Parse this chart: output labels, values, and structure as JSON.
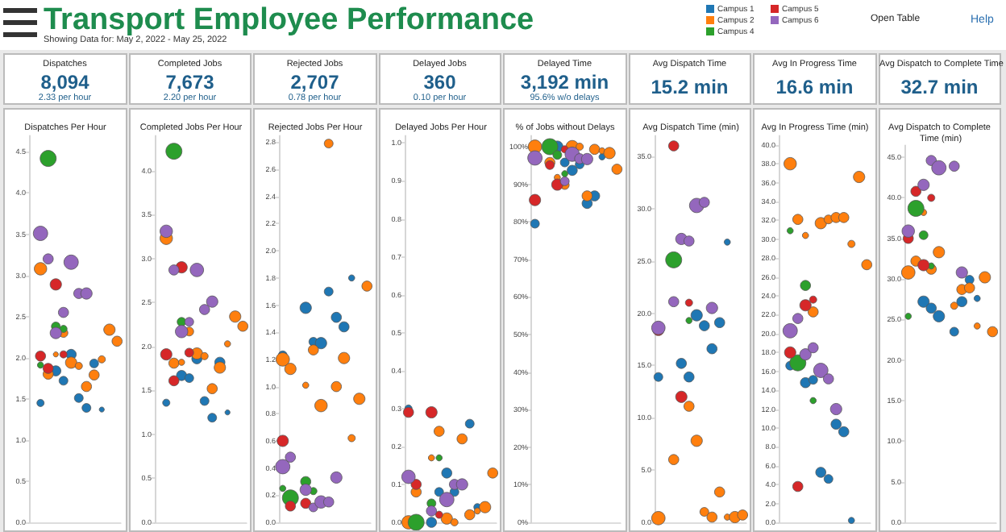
{
  "chart_data": [
    {
      "type": "other",
      "title": "Transport Employee Performance",
      "subtitle": "Showing Data for: May 2, 2022 - May 25, 2022",
      "annotations": [
        "Open Table",
        "Help"
      ]
    },
    {
      "type": "bubble",
      "title": "Dispatches Per Hour",
      "annotations": [
        "Dispatches",
        "8,094",
        "2.33 per hour"
      ],
      "legend": "top",
      "marker": "circle",
      "grid": false,
      "tick_labels": "y",
      "categories": [
        null,
        null,
        null,
        null,
        null,
        null,
        null,
        null,
        null,
        null,
        null,
        null
      ],
      "ylim": [
        0,
        4.7
      ],
      "yticks": [
        {
          "value": 0,
          "label": "0.0"
        },
        {
          "value": 0.5,
          "label": "0.5"
        },
        {
          "value": 1,
          "label": "1.0"
        },
        {
          "value": 1.5,
          "label": "1.5"
        },
        {
          "value": 2,
          "label": "2.0"
        },
        {
          "value": 2.5,
          "label": "2.5"
        },
        {
          "value": 3,
          "label": "3.0"
        },
        {
          "value": 3.5,
          "label": "3.5"
        },
        {
          "value": 4,
          "label": "4.0"
        },
        {
          "value": 4.5,
          "label": "4.5"
        }
      ],
      "series": [
        {
          "name": "Campus 1",
          "color": "#1f77b4",
          "values": [
            null,
            1.45,
            null,
            1.84,
            1.72,
            2.04,
            1.51,
            1.39,
            1.93,
            1.37,
            null,
            null
          ],
          "sizes": [
            null,
            0.2,
            null,
            0.4,
            0.3,
            0.4,
            0.3,
            0.3,
            0.3,
            0.1,
            null,
            null
          ]
        },
        {
          "name": "Campus 2",
          "color": "#ff7f0e",
          "values": [
            null,
            3.08,
            1.8,
            2.04,
            2.3,
            1.94,
            1.9,
            1.65,
            1.79,
            1.98,
            2.34,
            2.2
          ],
          "sizes": [
            null,
            0.6,
            0.4,
            0.1,
            0.3,
            0.5,
            0.2,
            0.4,
            0.4,
            0.2,
            0.5,
            0.4
          ]
        },
        {
          "name": "Campus 4",
          "color": "#2ca02c",
          "values": [
            null,
            1.91,
            4.42,
            2.38,
            2.35,
            null,
            null,
            null,
            null,
            null,
            null,
            null
          ],
          "sizes": [
            null,
            0.15,
            1,
            0.3,
            0.2,
            null,
            null,
            null,
            null,
            null,
            null,
            null
          ]
        },
        {
          "name": "Campus 5",
          "color": "#d62728",
          "values": [
            null,
            2.02,
            1.87,
            2.89,
            2.04,
            null,
            null,
            null,
            null,
            null,
            null,
            null
          ],
          "sizes": [
            null,
            0.4,
            0.4,
            0.5,
            0.2,
            null,
            null,
            null,
            null,
            null,
            null,
            null
          ]
        },
        {
          "name": "Campus 6",
          "color": "#9467bd",
          "values": [
            null,
            3.51,
            3.2,
            2.3,
            2.55,
            3.16,
            2.78,
            2.78,
            null,
            null,
            null,
            null
          ],
          "sizes": [
            null,
            0.8,
            0.4,
            0.5,
            0.4,
            0.8,
            0.4,
            0.5,
            null,
            null,
            null,
            null
          ]
        }
      ]
    },
    {
      "type": "bubble",
      "title": "Completed Jobs Per Hour",
      "annotations": [
        "Completed Jobs",
        "7,673",
        "2.20 per hour"
      ],
      "marker": "circle",
      "grid": false,
      "tick_labels": "y",
      "categories": [
        null,
        null,
        null,
        null,
        null,
        null,
        null,
        null,
        null,
        null,
        null,
        null
      ],
      "ylim": [
        0,
        4.4
      ],
      "yticks": [
        {
          "value": 0,
          "label": "0.0"
        },
        {
          "value": 0.5,
          "label": "0.5"
        },
        {
          "value": 1,
          "label": "1.0"
        },
        {
          "value": 1.5,
          "label": "1.5"
        },
        {
          "value": 2,
          "label": "2.0"
        },
        {
          "value": 2.5,
          "label": "2.5"
        },
        {
          "value": 3,
          "label": "3.0"
        },
        {
          "value": 3.5,
          "label": "3.5"
        },
        {
          "value": 4,
          "label": "4.0"
        }
      ],
      "series": [
        {
          "color": "#1f77b4",
          "values": [
            null,
            1.36,
            null,
            1.67,
            1.64,
            1.86,
            1.38,
            1.19,
            1.82,
            1.25,
            null,
            null
          ],
          "sizes": [
            null,
            0.2,
            null,
            0.4,
            0.3,
            0.4,
            0.3,
            0.3,
            0.4,
            0.1,
            null,
            null
          ]
        },
        {
          "color": "#ff7f0e",
          "values": [
            null,
            3.23,
            1.81,
            1.82,
            2.17,
            1.92,
            1.89,
            1.52,
            1.76,
            2.03,
            2.34,
            2.23
          ],
          "sizes": [
            null,
            0.6,
            0.4,
            0.15,
            0.3,
            0.5,
            0.2,
            0.4,
            0.5,
            0.15,
            0.5,
            0.4
          ]
        },
        {
          "color": "#2ca02c",
          "values": [
            null,
            null,
            4.22,
            2.28,
            null,
            null,
            null,
            null,
            null,
            null,
            null,
            null
          ],
          "sizes": [
            null,
            null,
            1,
            0.3,
            null,
            null,
            null,
            null,
            null,
            null,
            null,
            null
          ]
        },
        {
          "color": "#d62728",
          "values": [
            null,
            1.91,
            1.61,
            2.9,
            1.93,
            null,
            null,
            null,
            null,
            null,
            null,
            null
          ],
          "sizes": [
            null,
            0.5,
            0.4,
            0.5,
            0.3,
            null,
            null,
            null,
            null,
            null,
            null,
            null
          ]
        },
        {
          "color": "#9467bd",
          "values": [
            null,
            3.31,
            2.87,
            2.17,
            2.28,
            2.87,
            2.42,
            2.51,
            null,
            null,
            null,
            null
          ],
          "sizes": [
            null,
            0.6,
            0.4,
            0.6,
            0.3,
            0.7,
            0.4,
            0.5,
            null,
            null,
            null,
            null
          ]
        }
      ]
    },
    {
      "type": "bubble",
      "title": "Rejected Jobs Per Hour",
      "annotations": [
        "Rejected Jobs",
        "2,707",
        "0.78 per hour"
      ],
      "marker": "circle",
      "grid": false,
      "tick_labels": "y",
      "categories": [
        null,
        null,
        null,
        null,
        null,
        null,
        null,
        null,
        null,
        null,
        null,
        null
      ],
      "ylim": [
        0,
        2.85
      ],
      "yticks": [
        {
          "value": 0,
          "label": "0.0"
        },
        {
          "value": 0.2,
          "label": "0.2"
        },
        {
          "value": 0.4,
          "label": "0.4"
        },
        {
          "value": 0.6,
          "label": "0.6"
        },
        {
          "value": 0.8,
          "label": "0.8"
        },
        {
          "value": 1,
          "label": "1.0"
        },
        {
          "value": 1.2,
          "label": "1.2"
        },
        {
          "value": 1.4,
          "label": "1.4"
        },
        {
          "value": 1.6,
          "label": "1.6"
        },
        {
          "value": 1.8,
          "label": "1.8"
        },
        {
          "value": 2,
          "label": "2.0"
        },
        {
          "value": 2.2,
          "label": "2.2"
        },
        {
          "value": 2.4,
          "label": "2.4"
        },
        {
          "value": 2.6,
          "label": "2.6"
        },
        {
          "value": 2.8,
          "label": "2.8"
        }
      ],
      "series": [
        {
          "color": "#1f77b4",
          "values": [
            1.23,
            null,
            null,
            1.58,
            1.33,
            1.32,
            1.7,
            1.51,
            1.44,
            1.8,
            null,
            null
          ],
          "sizes": [
            0.3,
            null,
            null,
            0.5,
            0.3,
            0.5,
            0.3,
            0.4,
            0.4,
            0.15,
            null,
            null
          ]
        },
        {
          "color": "#ff7f0e",
          "values": [
            1.2,
            1.13,
            null,
            1.01,
            1.27,
            0.86,
            2.79,
            1.0,
            1.21,
            0.62,
            0.91,
            1.74
          ],
          "sizes": [
            0.7,
            0.5,
            null,
            0.15,
            0.4,
            0.6,
            0.3,
            0.4,
            0.5,
            0.2,
            0.5,
            0.4
          ]
        },
        {
          "color": "#2ca02c",
          "values": [
            0.25,
            0.18,
            null,
            0.3,
            0.23,
            null,
            null,
            null,
            null,
            null,
            null,
            null
          ],
          "sizes": [
            0.15,
            1,
            null,
            0.4,
            0.2,
            null,
            null,
            null,
            null,
            null,
            null,
            null
          ]
        },
        {
          "color": "#d62728",
          "values": [
            0.6,
            0.12,
            null,
            0.14,
            null,
            null,
            null,
            null,
            null,
            null,
            null,
            null
          ],
          "sizes": [
            0.5,
            0.4,
            null,
            0.4,
            null,
            null,
            null,
            null,
            null,
            null,
            null,
            null
          ]
        },
        {
          "color": "#9467bd",
          "values": [
            0.41,
            0.48,
            null,
            0.24,
            0.11,
            0.15,
            0.15,
            0.33,
            null,
            null,
            null,
            null
          ],
          "sizes": [
            0.8,
            0.4,
            null,
            0.5,
            0.3,
            0.6,
            0.4,
            0.5,
            null,
            null,
            null,
            null
          ]
        }
      ]
    },
    {
      "type": "bubble",
      "title": "Delayed Jobs Per Hour",
      "annotations": [
        "Delayed Jobs",
        "360",
        "0.10 per hour"
      ],
      "marker": "circle",
      "grid": false,
      "tick_labels": "y",
      "categories": [
        null,
        null,
        null,
        null,
        null,
        null,
        null,
        null,
        null,
        null,
        null,
        null
      ],
      "ylim": [
        0,
        1.02
      ],
      "yticks": [
        {
          "value": 0,
          "label": "0.0"
        },
        {
          "value": 0.1,
          "label": "0.1"
        },
        {
          "value": 0.2,
          "label": "0.2"
        },
        {
          "value": 0.3,
          "label": "0.3"
        },
        {
          "value": 0.4,
          "label": "0.4"
        },
        {
          "value": 0.5,
          "label": "0.5"
        },
        {
          "value": 0.6,
          "label": "0.6"
        },
        {
          "value": 0.7,
          "label": "0.7"
        },
        {
          "value": 0.8,
          "label": "0.8"
        },
        {
          "value": 0.9,
          "label": "0.9"
        },
        {
          "value": 1,
          "label": "1.0"
        }
      ],
      "series": [
        {
          "color": "#1f77b4",
          "values": [
            0.3,
            null,
            null,
            0.0,
            0.08,
            0.13,
            0.08,
            null,
            0.26,
            0.04,
            null,
            null
          ],
          "sizes": [
            0.2,
            null,
            null,
            0.4,
            0.3,
            0.4,
            0.3,
            null,
            0.3,
            0.2,
            null,
            null
          ]
        },
        {
          "color": "#ff7f0e",
          "values": [
            0.0,
            0.08,
            null,
            0.17,
            0.24,
            0.01,
            0.0,
            0.22,
            0.02,
            0.03,
            0.04,
            0.13
          ],
          "sizes": [
            0.7,
            0.4,
            null,
            0.15,
            0.4,
            0.5,
            0.2,
            0.4,
            0.4,
            0.15,
            0.5,
            0.4
          ]
        },
        {
          "color": "#2ca02c",
          "values": [
            null,
            0.0,
            null,
            0.05,
            0.17,
            null,
            null,
            null,
            null,
            null,
            null,
            null
          ],
          "sizes": [
            null,
            1,
            null,
            0.3,
            0.15,
            null,
            null,
            null,
            null,
            null,
            null,
            null
          ]
        },
        {
          "color": "#d62728",
          "values": [
            0.29,
            0.1,
            null,
            0.29,
            0.02,
            null,
            null,
            null,
            null,
            null,
            null,
            null
          ],
          "sizes": [
            0.4,
            0.4,
            null,
            0.5,
            0.2,
            null,
            null,
            null,
            null,
            null,
            null,
            null
          ]
        },
        {
          "color": "#9467bd",
          "values": [
            0.12,
            null,
            null,
            0.03,
            null,
            0.06,
            0.1,
            0.1,
            null,
            null,
            null,
            null
          ],
          "sizes": [
            0.7,
            null,
            null,
            0.4,
            null,
            0.8,
            0.4,
            0.5,
            null,
            null,
            null,
            null
          ]
        }
      ]
    },
    {
      "type": "bubble",
      "title": "% of Jobs without Delays",
      "annotations": [
        "Delayed Time",
        "3,192 min",
        "95.6% w/o delays"
      ],
      "marker": "circle",
      "grid": false,
      "tick_labels": "y",
      "categories": [
        null,
        null,
        null,
        null,
        null,
        null,
        null,
        null,
        null,
        null,
        null,
        null
      ],
      "ylim": [
        0,
        103
      ],
      "yticks": [
        {
          "value": 0,
          "label": "0%"
        },
        {
          "value": 10,
          "label": "10%"
        },
        {
          "value": 20,
          "label": "20%"
        },
        {
          "value": 30,
          "label": "30%"
        },
        {
          "value": 40,
          "label": "40%"
        },
        {
          "value": 50,
          "label": "50%"
        },
        {
          "value": 60,
          "label": "60%"
        },
        {
          "value": 70,
          "label": "70%"
        },
        {
          "value": 80,
          "label": "80%"
        },
        {
          "value": 90,
          "label": "90%"
        },
        {
          "value": 100,
          "label": "100%"
        }
      ],
      "series": [
        {
          "color": "#1f77b4",
          "values": [
            79.5,
            null,
            null,
            100,
            95.8,
            93.7,
            95.3,
            84.9,
            86.9,
            97.3,
            null,
            null
          ],
          "sizes": [
            0.3,
            null,
            null,
            0.5,
            0.3,
            0.4,
            0.3,
            0.4,
            0.4,
            0.15,
            null,
            null
          ]
        },
        {
          "color": "#ff7f0e",
          "values": [
            100,
            null,
            95.8,
            91.8,
            89.8,
            100,
            100,
            86.9,
            99.3,
            98.9,
            98.3,
            94.0
          ],
          "sizes": [
            0.7,
            null,
            0.4,
            0.15,
            0.3,
            0.6,
            0.2,
            0.4,
            0.4,
            0.15,
            0.5,
            0.4
          ]
        },
        {
          "color": "#2ca02c",
          "values": [
            null,
            null,
            100,
            97.8,
            92.8,
            null,
            null,
            null,
            null,
            null,
            null,
            null
          ],
          "sizes": [
            null,
            null,
            1,
            0.3,
            0.15,
            null,
            null,
            null,
            null,
            null,
            null,
            null
          ]
        },
        {
          "color": "#d62728",
          "values": [
            85.8,
            null,
            95.1,
            89.9,
            99.3,
            null,
            null,
            null,
            null,
            null,
            null,
            null
          ],
          "sizes": [
            0.5,
            null,
            0.3,
            0.5,
            0.2,
            null,
            null,
            null,
            null,
            null,
            null,
            null
          ]
        },
        {
          "color": "#9467bd",
          "values": [
            97.0,
            null,
            null,
            null,
            90.8,
            98.0,
            96.8,
            96.7,
            null,
            null,
            null,
            null
          ],
          "sizes": [
            0.8,
            null,
            null,
            null,
            0.3,
            0.8,
            0.4,
            0.5,
            null,
            null,
            null,
            null
          ]
        }
      ]
    },
    {
      "type": "bubble",
      "title": "Avg Dispatch Time (min)",
      "annotations": [
        "Avg Dispatch Time",
        "15.2 min"
      ],
      "marker": "circle",
      "grid": false,
      "tick_labels": "y",
      "categories": [
        null,
        null,
        null,
        null,
        null,
        null,
        null,
        null,
        null,
        null,
        null,
        null
      ],
      "ylim": [
        0,
        37
      ],
      "yticks": [
        {
          "value": 0,
          "label": "0.0"
        },
        {
          "value": 5,
          "label": "5.0"
        },
        {
          "value": 10,
          "label": "10.0"
        },
        {
          "value": 15,
          "label": "15.0"
        },
        {
          "value": 20,
          "label": "20.0"
        },
        {
          "value": 25,
          "label": "25.0"
        },
        {
          "value": 30,
          "label": "30.0"
        },
        {
          "value": 35,
          "label": "35.0"
        }
      ],
      "series": [
        {
          "color": "#1f77b4",
          "values": [
            13.9,
            null,
            null,
            15.2,
            13.9,
            19.8,
            18.8,
            16.6,
            19.1,
            26.8,
            null,
            null
          ],
          "sizes": [
            0.3,
            null,
            null,
            0.4,
            0.4,
            0.5,
            0.4,
            0.4,
            0.4,
            0.15,
            null,
            null
          ]
        },
        {
          "color": "#ff7f0e",
          "values": [
            0.4,
            null,
            6.0,
            null,
            11.1,
            7.8,
            1.0,
            0.5,
            2.9,
            0.5,
            0.5,
            0.7
          ],
          "sizes": [
            0.7,
            null,
            0.4,
            null,
            0.4,
            0.5,
            0.3,
            0.4,
            0.4,
            0.15,
            0.5,
            0.4
          ]
        },
        {
          "color": "#2ca02c",
          "values": [
            null,
            null,
            25.1,
            null,
            19.3,
            null,
            null,
            null,
            null,
            null,
            null,
            null
          ],
          "sizes": [
            null,
            null,
            1,
            null,
            0.15,
            null,
            null,
            null,
            null,
            null,
            null,
            null
          ]
        },
        {
          "color": "#d62728",
          "values": [
            18.4,
            null,
            36.0,
            12.0,
            21.0,
            null,
            null,
            null,
            null,
            null,
            null,
            null
          ],
          "sizes": [
            0.5,
            null,
            0.4,
            0.5,
            0.2,
            null,
            null,
            null,
            null,
            null,
            null,
            null
          ]
        },
        {
          "color": "#9467bd",
          "values": [
            18.6,
            null,
            21.1,
            27.1,
            26.9,
            30.3,
            30.6,
            20.5,
            null,
            null,
            null,
            null
          ],
          "sizes": [
            0.7,
            null,
            0.4,
            0.5,
            0.4,
            0.8,
            0.4,
            0.5,
            null,
            null,
            null,
            null
          ]
        }
      ]
    },
    {
      "type": "bubble",
      "title": "Avg In Progress Time (min)",
      "annotations": [
        "Avg In Progress Time",
        "16.6 min"
      ],
      "marker": "circle",
      "grid": false,
      "tick_labels": "y",
      "categories": [
        null,
        null,
        null,
        null,
        null,
        null,
        null,
        null,
        null,
        null,
        null,
        null
      ],
      "ylim": [
        0,
        41
      ],
      "yticks": [
        {
          "value": 0,
          "label": "0.0"
        },
        {
          "value": 2,
          "label": "2.0"
        },
        {
          "value": 4,
          "label": "4.0"
        },
        {
          "value": 6,
          "label": "6.0"
        },
        {
          "value": 8,
          "label": "8.0"
        },
        {
          "value": 10,
          "label": "10.0"
        },
        {
          "value": 12,
          "label": "12.0"
        },
        {
          "value": 14,
          "label": "14.0"
        },
        {
          "value": 16,
          "label": "16.0"
        },
        {
          "value": 18,
          "label": "18.0"
        },
        {
          "value": 20,
          "label": "20.0"
        },
        {
          "value": 22,
          "label": "22.0"
        },
        {
          "value": 24,
          "label": "24.0"
        },
        {
          "value": 26,
          "label": "26.0"
        },
        {
          "value": 28,
          "label": "28.0"
        },
        {
          "value": 30,
          "label": "30.0"
        },
        {
          "value": 32,
          "label": "32.0"
        },
        {
          "value": 34,
          "label": "34.0"
        },
        {
          "value": 36,
          "label": "36.0"
        },
        {
          "value": 38,
          "label": "38.0"
        },
        {
          "value": 40,
          "label": "40.0"
        }
      ],
      "series": [
        {
          "color": "#1f77b4",
          "values": [
            null,
            16.6,
            null,
            14.8,
            15.1,
            5.3,
            4.6,
            10.4,
            9.6,
            0.2,
            null,
            null
          ],
          "sizes": [
            null,
            0.3,
            null,
            0.4,
            0.3,
            0.4,
            0.3,
            0.4,
            0.4,
            0.15,
            null,
            null
          ]
        },
        {
          "color": "#ff7f0e",
          "values": [
            null,
            38.0,
            32.1,
            30.4,
            22.3,
            31.7,
            32.1,
            32.3,
            32.3,
            29.5,
            36.6,
            27.3
          ],
          "sizes": [
            null,
            0.6,
            0.4,
            0.15,
            0.4,
            0.5,
            0.3,
            0.4,
            0.4,
            0.2,
            0.5,
            0.4
          ]
        },
        {
          "color": "#2ca02c",
          "values": [
            null,
            30.9,
            16.9,
            25.1,
            12.9,
            null,
            null,
            null,
            null,
            null,
            null,
            null
          ],
          "sizes": [
            null,
            0.15,
            1,
            0.4,
            0.15,
            null,
            null,
            null,
            null,
            null,
            null,
            null
          ]
        },
        {
          "color": "#d62728",
          "values": [
            null,
            18.0,
            3.8,
            23.0,
            23.6,
            null,
            null,
            null,
            null,
            null,
            null,
            null
          ],
          "sizes": [
            null,
            0.5,
            0.4,
            0.5,
            0.2,
            null,
            null,
            null,
            null,
            null,
            null,
            null
          ]
        },
        {
          "color": "#9467bd",
          "values": [
            null,
            20.3,
            21.6,
            17.8,
            18.5,
            16.1,
            15.2,
            12.0,
            null,
            null,
            null,
            null
          ],
          "sizes": [
            null,
            0.8,
            0.4,
            0.5,
            0.4,
            0.8,
            0.4,
            0.5,
            null,
            null,
            null,
            null
          ]
        }
      ]
    },
    {
      "type": "bubble",
      "title": "Avg Dispatch to Complete Time (min)",
      "annotations": [
        "Avg Dispatch to Complete Time",
        "32.7 min"
      ],
      "marker": "circle",
      "grid": false,
      "tick_labels": "y",
      "categories": [
        null,
        null,
        null,
        null,
        null,
        null,
        null,
        null,
        null,
        null,
        null,
        null
      ],
      "ylim": [
        0,
        46.5
      ],
      "yticks": [
        {
          "value": 0,
          "label": "0.0"
        },
        {
          "value": 5,
          "label": "5.0"
        },
        {
          "value": 10,
          "label": "10.0"
        },
        {
          "value": 15,
          "label": "15.0"
        },
        {
          "value": 20,
          "label": "20.0"
        },
        {
          "value": 25,
          "label": "25.0"
        },
        {
          "value": 30,
          "label": "30.0"
        },
        {
          "value": 35,
          "label": "35.0"
        },
        {
          "value": 40,
          "label": "40.0"
        },
        {
          "value": 45,
          "label": "45.0"
        }
      ],
      "series": [
        {
          "color": "#1f77b4",
          "values": [
            null,
            null,
            27.2,
            26.4,
            25.4,
            null,
            23.5,
            27.2,
            29.9,
            27.6,
            null,
            null
          ],
          "sizes": [
            null,
            null,
            0.5,
            0.4,
            0.5,
            null,
            0.3,
            0.4,
            0.3,
            0.15,
            null,
            null
          ]
        },
        {
          "color": "#ff7f0e",
          "values": [
            30.8,
            32.2,
            38.2,
            31.2,
            33.3,
            null,
            26.7,
            28.7,
            28.9,
            24.2,
            30.2,
            23.5
          ],
          "sizes": [
            0.7,
            0.4,
            0.15,
            0.4,
            0.5,
            null,
            0.2,
            0.4,
            0.4,
            0.15,
            0.5,
            0.4
          ]
        },
        {
          "color": "#2ca02c",
          "values": [
            25.4,
            38.7,
            35.4,
            31.6,
            null,
            null,
            null,
            null,
            null,
            null,
            null,
            null
          ],
          "sizes": [
            0.15,
            1,
            0.3,
            0.15,
            null,
            null,
            null,
            null,
            null,
            null,
            null,
            null
          ]
        },
        {
          "color": "#d62728",
          "values": [
            35.0,
            40.8,
            31.7,
            40.0,
            null,
            null,
            null,
            null,
            null,
            null,
            null,
            null
          ],
          "sizes": [
            0.4,
            0.4,
            0.5,
            0.2,
            null,
            null,
            null,
            null,
            null,
            null,
            null,
            null
          ]
        },
        {
          "color": "#9467bd",
          "values": [
            35.9,
            null,
            41.6,
            44.6,
            43.7,
            null,
            43.9,
            30.8,
            null,
            null,
            null,
            null
          ],
          "sizes": [
            0.6,
            null,
            0.5,
            0.4,
            0.8,
            null,
            0.4,
            0.5,
            null,
            null,
            null,
            null
          ]
        }
      ]
    }
  ]
}
